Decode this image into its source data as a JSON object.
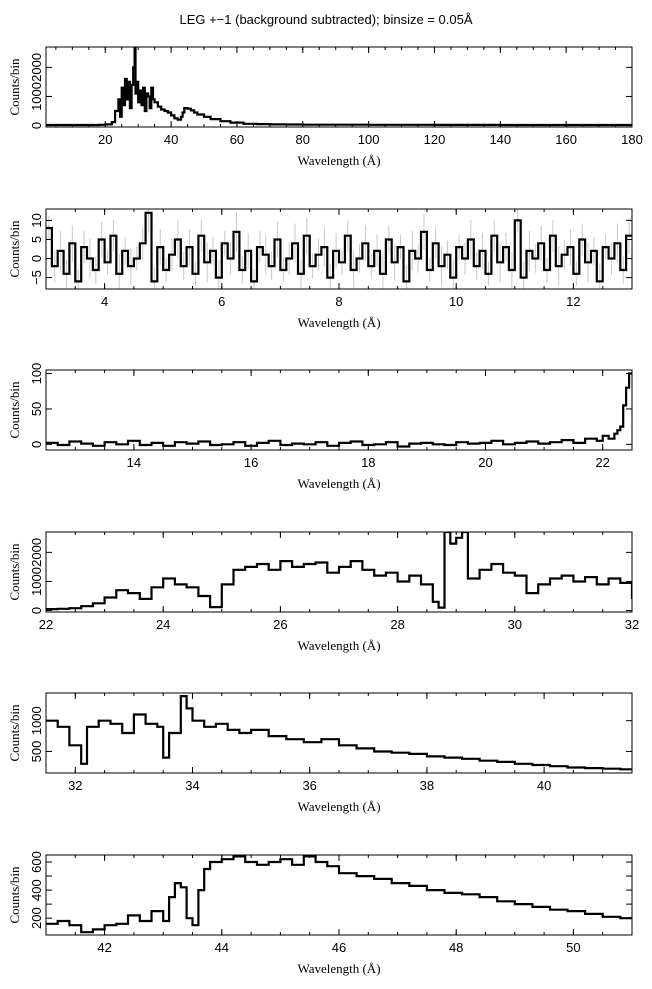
{
  "figure": {
    "title": "LEG +−1 (background subtracted); binsize = 0.05Å"
  },
  "chart_data": [
    {
      "type": "line",
      "step": true,
      "xlabel": "Wavelength (Å)",
      "ylabel": "Counts/bin",
      "xlim": [
        2,
        180
      ],
      "ylim": [
        -50,
        2700
      ],
      "xticks": [
        20,
        40,
        60,
        80,
        100,
        120,
        140,
        160,
        180
      ],
      "yticks": [
        0,
        1000,
        2000
      ],
      "ytick_labels": [
        "0",
        "1000",
        "2000"
      ],
      "error_bars": false,
      "series": [
        {
          "x": [
            2,
            10,
            18,
            20,
            22,
            23,
            24,
            24.5,
            25,
            25.5,
            26,
            26.5,
            27,
            27.5,
            28,
            28.5,
            28.9,
            29.2,
            29.6,
            30,
            30.5,
            31,
            31.5,
            32,
            32.5,
            33,
            33.5,
            34,
            34.5,
            35,
            36,
            37,
            38,
            39,
            40,
            41,
            42,
            43,
            43.5,
            44,
            45,
            46,
            47,
            48,
            50,
            52,
            55,
            58,
            62,
            66,
            70,
            75,
            80,
            90,
            100,
            110,
            120,
            130,
            140,
            150,
            160,
            170,
            180
          ],
          "y": [
            20,
            20,
            25,
            40,
            120,
            500,
            900,
            300,
            1300,
            700,
            1600,
            900,
            1500,
            600,
            1400,
            2000,
            2700,
            1100,
            1500,
            800,
            1200,
            700,
            1300,
            500,
            1100,
            1000,
            600,
            1300,
            900,
            800,
            650,
            550,
            500,
            450,
            350,
            250,
            200,
            300,
            450,
            600,
            580,
            520,
            450,
            380,
            300,
            220,
            150,
            100,
            60,
            50,
            40,
            35,
            30,
            28,
            25,
            25,
            22,
            22,
            20,
            20,
            20,
            18,
            18
          ]
        }
      ]
    },
    {
      "type": "line",
      "step": true,
      "xlabel": "Wavelength (Å)",
      "ylabel": "Counts/bin",
      "xlim": [
        3,
        13
      ],
      "ylim": [
        -8,
        13
      ],
      "xticks": [
        4,
        6,
        8,
        10,
        12
      ],
      "yticks": [
        -5,
        0,
        5,
        10
      ],
      "ytick_labels": [
        "−5",
        "0",
        "5",
        "10"
      ],
      "error_bars": true,
      "series": [
        {
          "x": [
            3.0,
            3.1,
            3.2,
            3.3,
            3.4,
            3.5,
            3.6,
            3.7,
            3.8,
            3.9,
            4.0,
            4.1,
            4.2,
            4.3,
            4.4,
            4.5,
            4.6,
            4.7,
            4.8,
            4.9,
            5.0,
            5.1,
            5.2,
            5.3,
            5.4,
            5.5,
            5.6,
            5.7,
            5.8,
            5.9,
            6.0,
            6.1,
            6.2,
            6.3,
            6.4,
            6.5,
            6.6,
            6.7,
            6.8,
            6.9,
            7.0,
            7.1,
            7.2,
            7.3,
            7.4,
            7.5,
            7.6,
            7.7,
            7.8,
            7.9,
            8.0,
            8.1,
            8.2,
            8.3,
            8.4,
            8.5,
            8.6,
            8.7,
            8.8,
            8.9,
            9.0,
            9.1,
            9.2,
            9.3,
            9.4,
            9.5,
            9.6,
            9.7,
            9.8,
            9.9,
            10.0,
            10.1,
            10.2,
            10.3,
            10.4,
            10.5,
            10.6,
            10.7,
            10.8,
            10.9,
            11.0,
            11.1,
            11.2,
            11.3,
            11.4,
            11.5,
            11.6,
            11.7,
            11.8,
            11.9,
            12.0,
            12.1,
            12.2,
            12.3,
            12.4,
            12.5,
            12.6,
            12.7,
            12.8,
            12.9
          ],
          "y": [
            8,
            -2,
            2,
            -4,
            4,
            -6,
            3,
            0,
            -3,
            5,
            -1,
            6,
            -4,
            2,
            -2,
            0,
            4,
            12,
            -6,
            3,
            -3,
            1,
            5,
            -2,
            3,
            -4,
            6,
            -1,
            2,
            -5,
            4,
            0,
            7,
            -3,
            2,
            -6,
            3,
            1,
            -2,
            5,
            -3,
            0,
            4,
            -4,
            6,
            -2,
            1,
            3,
            -5,
            2,
            -1,
            6,
            -3,
            0,
            4,
            -2,
            2,
            -4,
            5,
            -1,
            3,
            -6,
            2,
            0,
            7,
            -3,
            4,
            -2,
            1,
            -5,
            3,
            0,
            5,
            -2,
            2,
            -4,
            6,
            -1,
            3,
            -3,
            10,
            -5,
            2,
            0,
            4,
            -3,
            6,
            -2,
            1,
            3,
            -4,
            5,
            -1,
            2,
            -6,
            3,
            0,
            4,
            -3,
            6
          ]
        }
      ]
    },
    {
      "type": "line",
      "step": true,
      "xlabel": "Wavelength (Å)",
      "ylabel": "Counts/bin",
      "xlim": [
        12.5,
        22.5
      ],
      "ylim": [
        -8,
        105
      ],
      "xticks": [
        14,
        16,
        18,
        20,
        22
      ],
      "yticks": [
        0,
        50,
        100
      ],
      "ytick_labels": [
        "0",
        "50",
        "100"
      ],
      "error_bars": false,
      "series": [
        {
          "x": [
            12.5,
            12.7,
            12.9,
            13.1,
            13.3,
            13.5,
            13.7,
            13.9,
            14.1,
            14.3,
            14.5,
            14.7,
            14.9,
            15.1,
            15.3,
            15.5,
            15.7,
            15.9,
            16.1,
            16.3,
            16.5,
            16.7,
            16.9,
            17.1,
            17.3,
            17.5,
            17.7,
            17.9,
            18.1,
            18.3,
            18.5,
            18.7,
            18.9,
            19.1,
            19.3,
            19.5,
            19.7,
            19.9,
            20.1,
            20.3,
            20.5,
            20.7,
            20.9,
            21.1,
            21.3,
            21.5,
            21.7,
            21.9,
            22.0,
            22.1,
            22.2,
            22.25,
            22.3,
            22.35,
            22.4,
            22.45
          ],
          "y": [
            2,
            -1,
            4,
            1,
            -2,
            3,
            0,
            5,
            -1,
            2,
            -2,
            3,
            1,
            4,
            -1,
            0,
            3,
            -2,
            2,
            5,
            -1,
            1,
            0,
            3,
            -2,
            2,
            4,
            -1,
            0,
            3,
            -3,
            1,
            2,
            0,
            -1,
            3,
            1,
            2,
            5,
            0,
            2,
            4,
            1,
            3,
            6,
            2,
            8,
            5,
            12,
            8,
            15,
            20,
            25,
            55,
            80,
            100
          ]
        }
      ]
    },
    {
      "type": "line",
      "step": true,
      "xlabel": "Wavelength (Å)",
      "ylabel": "Counts/bin",
      "xlim": [
        22,
        32
      ],
      "ylim": [
        -50,
        2700
      ],
      "xticks": [
        22,
        24,
        26,
        28,
        30,
        32
      ],
      "yticks": [
        0,
        1000,
        2000
      ],
      "ytick_labels": [
        "0",
        "1000",
        "2000"
      ],
      "error_bars": false,
      "series": [
        {
          "x": [
            22.0,
            22.2,
            22.4,
            22.6,
            22.8,
            23.0,
            23.2,
            23.4,
            23.6,
            23.8,
            24.0,
            24.2,
            24.4,
            24.6,
            24.8,
            25.0,
            25.2,
            25.4,
            25.6,
            25.8,
            26.0,
            26.2,
            26.4,
            26.6,
            26.8,
            27.0,
            27.2,
            27.4,
            27.6,
            27.8,
            28.0,
            28.2,
            28.4,
            28.6,
            28.7,
            28.8,
            28.9,
            29.0,
            29.1,
            29.2,
            29.4,
            29.6,
            29.8,
            30.0,
            30.2,
            30.4,
            30.6,
            30.8,
            31.0,
            31.2,
            31.4,
            31.6,
            31.8,
            32.0
          ],
          "y": [
            50,
            60,
            80,
            150,
            250,
            450,
            700,
            600,
            400,
            800,
            1100,
            900,
            800,
            500,
            120,
            900,
            1400,
            1500,
            1600,
            1400,
            1700,
            1500,
            1600,
            1650,
            1300,
            1500,
            1700,
            1400,
            1200,
            1300,
            1000,
            1200,
            900,
            300,
            100,
            2700,
            2300,
            2500,
            2700,
            1100,
            1400,
            1600,
            1300,
            1200,
            600,
            900,
            1100,
            1200,
            1000,
            1150,
            900,
            1100,
            950,
            400
          ]
        }
      ]
    },
    {
      "type": "line",
      "step": true,
      "xlabel": "Wavelength (Å)",
      "ylabel": "Counts/bin",
      "xlim": [
        31.5,
        41.5
      ],
      "ylim": [
        150,
        1450
      ],
      "xticks": [
        32,
        34,
        36,
        38,
        40
      ],
      "yticks": [
        500,
        1000
      ],
      "ytick_labels": [
        "500",
        "1000"
      ],
      "error_bars": false,
      "series": [
        {
          "x": [
            31.5,
            31.7,
            31.9,
            32.1,
            32.2,
            32.4,
            32.6,
            32.8,
            33.0,
            33.2,
            33.4,
            33.5,
            33.6,
            33.8,
            33.9,
            34.0,
            34.2,
            34.4,
            34.6,
            34.8,
            35.0,
            35.3,
            35.6,
            35.9,
            36.2,
            36.5,
            36.8,
            37.1,
            37.4,
            37.7,
            38.0,
            38.3,
            38.6,
            38.9,
            39.2,
            39.5,
            39.8,
            40.1,
            40.4,
            40.7,
            41.0,
            41.3
          ],
          "y": [
            1000,
            900,
            600,
            300,
            900,
            1000,
            950,
            800,
            1100,
            950,
            900,
            400,
            800,
            1400,
            1200,
            1000,
            900,
            950,
            850,
            800,
            850,
            750,
            700,
            650,
            700,
            600,
            550,
            500,
            480,
            460,
            420,
            400,
            380,
            350,
            330,
            300,
            280,
            260,
            240,
            230,
            220,
            210
          ]
        }
      ]
    },
    {
      "type": "line",
      "step": true,
      "xlabel": "Wavelength (Å)",
      "ylabel": "Counts/bin",
      "xlim": [
        41,
        51
      ],
      "ylim": [
        80,
        650
      ],
      "xticks": [
        42,
        44,
        46,
        48,
        50
      ],
      "yticks": [
        200,
        300,
        400,
        500,
        600
      ],
      "ytick_labels": [
        "200",
        "",
        "400",
        "",
        "600"
      ],
      "error_bars": false,
      "series": [
        {
          "x": [
            41.0,
            41.2,
            41.4,
            41.6,
            41.8,
            42.0,
            42.2,
            42.4,
            42.6,
            42.8,
            43.0,
            43.1,
            43.2,
            43.3,
            43.4,
            43.5,
            43.6,
            43.7,
            43.8,
            44.0,
            44.2,
            44.4,
            44.6,
            44.8,
            45.0,
            45.2,
            45.4,
            45.6,
            45.8,
            46.0,
            46.3,
            46.6,
            46.9,
            47.2,
            47.5,
            47.8,
            48.1,
            48.4,
            48.7,
            49.0,
            49.3,
            49.6,
            49.9,
            50.2,
            50.5,
            50.8
          ],
          "y": [
            160,
            180,
            150,
            100,
            120,
            150,
            160,
            220,
            180,
            250,
            180,
            350,
            450,
            420,
            200,
            150,
            400,
            550,
            600,
            620,
            640,
            600,
            580,
            600,
            620,
            580,
            640,
            600,
            570,
            520,
            500,
            480,
            450,
            430,
            400,
            380,
            370,
            350,
            320,
            300,
            280,
            260,
            250,
            230,
            210,
            200
          ]
        }
      ]
    }
  ]
}
